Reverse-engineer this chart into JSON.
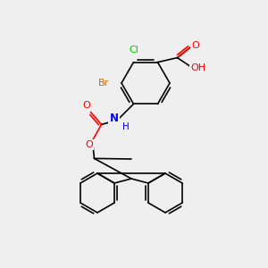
{
  "bg_color": "#efefef",
  "bond_color": "#000000",
  "bond_width": 1.2,
  "atom_colors": {
    "C": "#000000",
    "O": "#ff0000",
    "N": "#0000ff",
    "Cl": "#00cc00",
    "Br": "#cc6600",
    "H": "#000000"
  },
  "font_size": 7.5,
  "label_font_size": 7.5
}
